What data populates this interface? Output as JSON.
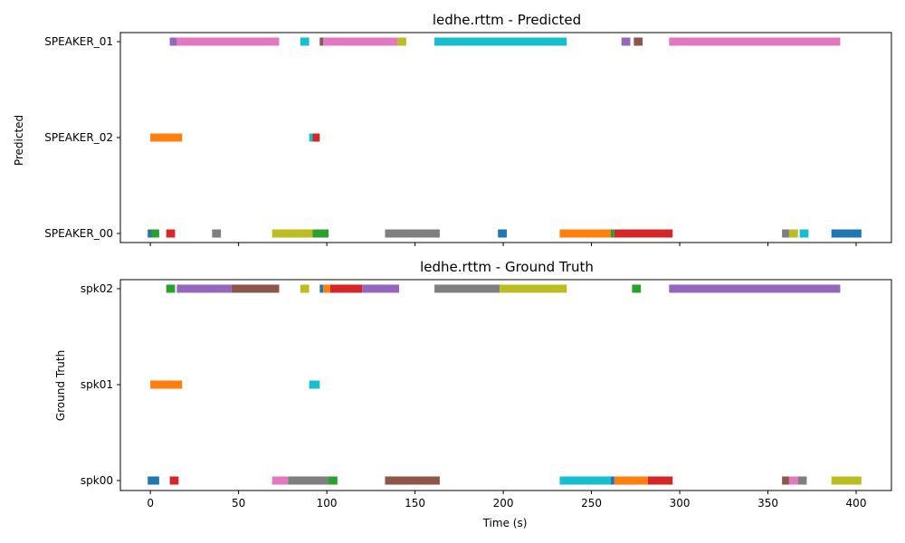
{
  "palette": [
    "#1f77b4",
    "#ff7f0e",
    "#2ca02c",
    "#d62728",
    "#9467bd",
    "#8c564b",
    "#e377c2",
    "#7f7f7f",
    "#bcbd22",
    "#17becf"
  ],
  "shared_xlabel": "Time (s)",
  "chart_data": [
    {
      "type": "gantt",
      "title": "ledhe.rttm - Predicted",
      "xlabel": "",
      "ylabel": "Predicted",
      "xlim": [
        -17,
        420
      ],
      "xticks": [
        0,
        50,
        100,
        150,
        200,
        250,
        300,
        350,
        400
      ],
      "show_xtick_labels": false,
      "rows": [
        "SPEAKER_00",
        "SPEAKER_02",
        "SPEAKER_01"
      ],
      "segments": [
        {
          "row": "SPEAKER_00",
          "start": -1.5,
          "end": 1.5,
          "color": 0
        },
        {
          "row": "SPEAKER_00",
          "start": 0.5,
          "end": 5,
          "color": 2
        },
        {
          "row": "SPEAKER_00",
          "start": 9,
          "end": 14,
          "color": 3
        },
        {
          "row": "SPEAKER_00",
          "start": 35,
          "end": 40,
          "color": 7
        },
        {
          "row": "SPEAKER_00",
          "start": 69,
          "end": 92,
          "color": 8
        },
        {
          "row": "SPEAKER_00",
          "start": 92,
          "end": 101,
          "color": 2
        },
        {
          "row": "SPEAKER_00",
          "start": 133,
          "end": 164,
          "color": 7
        },
        {
          "row": "SPEAKER_00",
          "start": 197,
          "end": 202,
          "color": 0
        },
        {
          "row": "SPEAKER_00",
          "start": 232,
          "end": 261,
          "color": 1
        },
        {
          "row": "SPEAKER_00",
          "start": 261,
          "end": 263,
          "color": 2
        },
        {
          "row": "SPEAKER_00",
          "start": 263,
          "end": 296,
          "color": 3
        },
        {
          "row": "SPEAKER_00",
          "start": 358,
          "end": 362,
          "color": 7
        },
        {
          "row": "SPEAKER_00",
          "start": 362,
          "end": 367,
          "color": 8
        },
        {
          "row": "SPEAKER_00",
          "start": 368,
          "end": 373,
          "color": 9
        },
        {
          "row": "SPEAKER_00",
          "start": 386,
          "end": 403,
          "color": 0
        },
        {
          "row": "SPEAKER_02",
          "start": 0,
          "end": 18,
          "color": 1
        },
        {
          "row": "SPEAKER_02",
          "start": 90,
          "end": 92,
          "color": 9
        },
        {
          "row": "SPEAKER_02",
          "start": 92,
          "end": 96,
          "color": 3
        },
        {
          "row": "SPEAKER_01",
          "start": 11,
          "end": 15,
          "color": 4
        },
        {
          "row": "SPEAKER_01",
          "start": 15,
          "end": 73,
          "color": 6
        },
        {
          "row": "SPEAKER_01",
          "start": 85,
          "end": 90,
          "color": 9
        },
        {
          "row": "SPEAKER_01",
          "start": 96,
          "end": 98,
          "color": 5
        },
        {
          "row": "SPEAKER_01",
          "start": 98,
          "end": 140,
          "color": 6
        },
        {
          "row": "SPEAKER_01",
          "start": 140,
          "end": 145,
          "color": 8
        },
        {
          "row": "SPEAKER_01",
          "start": 161,
          "end": 236,
          "color": 9
        },
        {
          "row": "SPEAKER_01",
          "start": 267,
          "end": 272,
          "color": 4
        },
        {
          "row": "SPEAKER_01",
          "start": 274,
          "end": 279,
          "color": 5
        },
        {
          "row": "SPEAKER_01",
          "start": 294,
          "end": 391,
          "color": 6
        }
      ]
    },
    {
      "type": "gantt",
      "title": "ledhe.rttm - Ground Truth",
      "xlabel": "Time (s)",
      "ylabel": "Ground Truth",
      "xlim": [
        -17,
        420
      ],
      "xticks": [
        0,
        50,
        100,
        150,
        200,
        250,
        300,
        350,
        400
      ],
      "show_xtick_labels": true,
      "rows": [
        "spk00",
        "spk01",
        "spk02"
      ],
      "segments": [
        {
          "row": "spk00",
          "start": -1.5,
          "end": 5,
          "color": 0
        },
        {
          "row": "spk00",
          "start": 11,
          "end": 16,
          "color": 3
        },
        {
          "row": "spk00",
          "start": 69,
          "end": 78,
          "color": 6
        },
        {
          "row": "spk00",
          "start": 78,
          "end": 101,
          "color": 7
        },
        {
          "row": "spk00",
          "start": 101,
          "end": 106,
          "color": 2
        },
        {
          "row": "spk00",
          "start": 133,
          "end": 164,
          "color": 5
        },
        {
          "row": "spk00",
          "start": 232,
          "end": 261,
          "color": 9
        },
        {
          "row": "spk00",
          "start": 261,
          "end": 263,
          "color": 0
        },
        {
          "row": "spk00",
          "start": 263,
          "end": 282,
          "color": 1
        },
        {
          "row": "spk00",
          "start": 282,
          "end": 296,
          "color": 3
        },
        {
          "row": "spk00",
          "start": 358,
          "end": 362,
          "color": 5
        },
        {
          "row": "spk00",
          "start": 362,
          "end": 367,
          "color": 6
        },
        {
          "row": "spk00",
          "start": 367,
          "end": 372,
          "color": 7
        },
        {
          "row": "spk00",
          "start": 386,
          "end": 403,
          "color": 8
        },
        {
          "row": "spk01",
          "start": 0,
          "end": 18,
          "color": 1
        },
        {
          "row": "spk01",
          "start": 90,
          "end": 96,
          "color": 9
        },
        {
          "row": "spk02",
          "start": 9,
          "end": 14,
          "color": 2
        },
        {
          "row": "spk02",
          "start": 15,
          "end": 46,
          "color": 4
        },
        {
          "row": "spk02",
          "start": 46,
          "end": 73,
          "color": 5
        },
        {
          "row": "spk02",
          "start": 85,
          "end": 90,
          "color": 8
        },
        {
          "row": "spk02",
          "start": 96,
          "end": 98,
          "color": 0
        },
        {
          "row": "spk02",
          "start": 98,
          "end": 102,
          "color": 1
        },
        {
          "row": "spk02",
          "start": 102,
          "end": 120,
          "color": 3
        },
        {
          "row": "spk02",
          "start": 120,
          "end": 141,
          "color": 4
        },
        {
          "row": "spk02",
          "start": 161,
          "end": 198,
          "color": 7
        },
        {
          "row": "spk02",
          "start": 198,
          "end": 236,
          "color": 8
        },
        {
          "row": "spk02",
          "start": 273,
          "end": 278,
          "color": 2
        },
        {
          "row": "spk02",
          "start": 294,
          "end": 391,
          "color": 4
        }
      ]
    }
  ]
}
